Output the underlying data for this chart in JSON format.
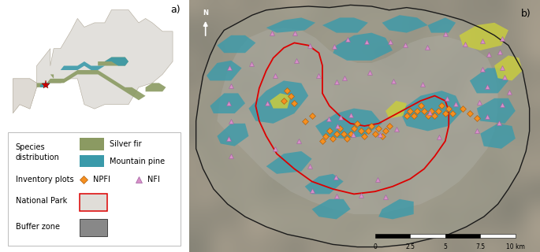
{
  "fig_width": 6.85,
  "fig_height": 3.2,
  "dpi": 100,
  "panel_a_label": "a)",
  "panel_b_label": "b)",
  "map_bg_color": "#c8d0d8",
  "europe_land_color": "#e2e0dc",
  "europe_edge_color": "#b0a898",
  "silver_fir_color": "#8b9a62",
  "mountain_pine_color": "#3a9aaa",
  "silver_fir_color_b": "#c8cc40",
  "npfi_color": "#f59020",
  "npfi_edge": "#b06010",
  "nfi_color": "#d890c8",
  "nfi_edge": "#a060a0",
  "national_park_fill": "none",
  "national_park_edge": "#dd0000",
  "buffer_zone_fill": "#888888",
  "buffer_zone_edge": "#111111",
  "terrain_base": "#9a9e98",
  "terrain_inner": "#a8aa9e",
  "legend_bg": "#ffffff",
  "legend_border": "#cccccc",
  "label_fontsize": 8,
  "legend_fontsize": 7,
  "scalebar_values": [
    "0",
    "2.5",
    "5",
    "7.5",
    "10 km"
  ]
}
